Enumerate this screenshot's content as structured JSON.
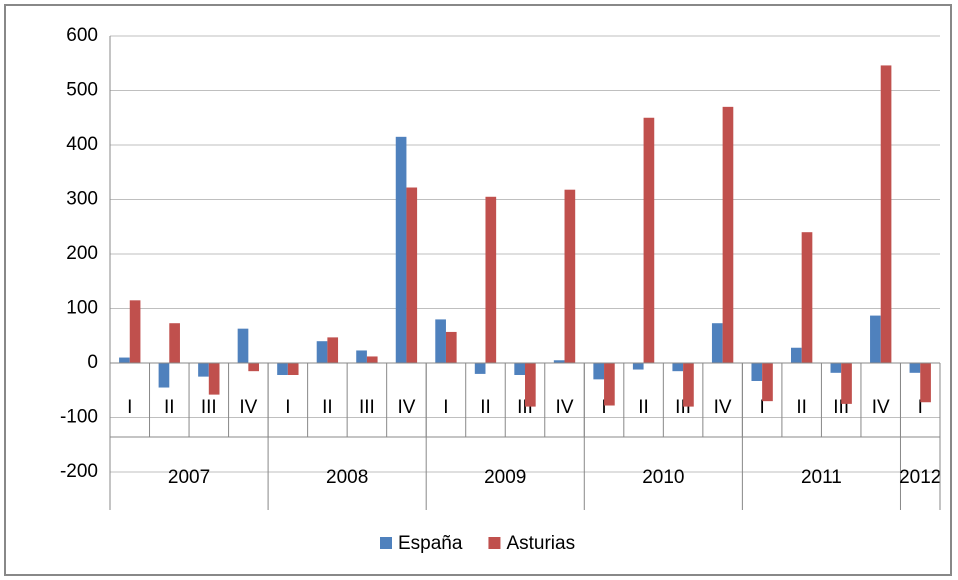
{
  "chart_data": {
    "type": "bar",
    "groups": [
      {
        "label": "2007",
        "categories": [
          "I",
          "II",
          "III",
          "IV"
        ]
      },
      {
        "label": "2008",
        "categories": [
          "I",
          "II",
          "III",
          "IV"
        ]
      },
      {
        "label": "2009",
        "categories": [
          "I",
          "II",
          "III",
          "IV"
        ]
      },
      {
        "label": "2010",
        "categories": [
          "I",
          "II",
          "III",
          "IV"
        ]
      },
      {
        "label": "2011",
        "categories": [
          "I",
          "II",
          "III",
          "IV"
        ]
      },
      {
        "label": "2012",
        "categories": [
          "I"
        ]
      }
    ],
    "series": [
      {
        "name": "España",
        "color": "#4f81bd",
        "values": [
          10,
          -45,
          -25,
          63,
          -22,
          40,
          23,
          415,
          80,
          -20,
          -22,
          5,
          -30,
          -12,
          -15,
          73,
          -33,
          28,
          -18,
          87,
          -18
        ]
      },
      {
        "name": "Asturias",
        "color": "#c0504d",
        "values": [
          115,
          73,
          -58,
          -15,
          -22,
          47,
          12,
          322,
          57,
          305,
          -80,
          318,
          -78,
          450,
          -80,
          470,
          -70,
          240,
          -75,
          546,
          -72
        ]
      }
    ],
    "ylim": [
      -200,
      600
    ],
    "yticks": [
      -200,
      -100,
      0,
      100,
      200,
      300,
      400,
      500,
      600
    ],
    "grid": true,
    "legend": "bottom"
  }
}
